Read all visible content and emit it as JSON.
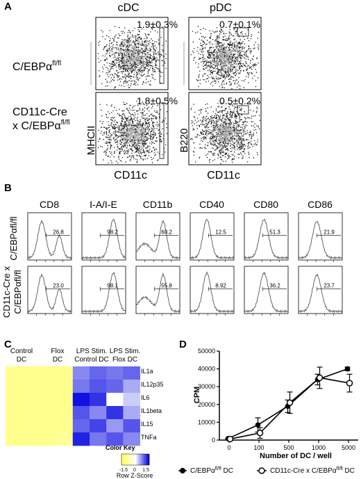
{
  "panelA": {
    "label": "A",
    "col_titles": [
      "cDC",
      "pDC"
    ],
    "row_label_1": "C/EBPα",
    "row_label_1_sup": "fl/fl",
    "row_label_2a": "CD11c-Cre",
    "row_label_2b": "x C/EBPα",
    "row_label_2b_sup": "fl/fl",
    "ylabel_cdc": "MHCII",
    "ylabel_pdc": "B220",
    "xlabel_cdc": "CD11c",
    "xlabel_pdc": "CD11c",
    "gates": [
      {
        "name": "cdc-flox-gate",
        "value": "1.9±0.3%"
      },
      {
        "name": "pdc-flox-gate",
        "value": "0.7±0.1%"
      },
      {
        "name": "cdc-cre-gate",
        "value": "1.8±0.5%"
      },
      {
        "name": "pdc-cre-gate",
        "value": "0.5±0.2%"
      }
    ]
  },
  "panelB": {
    "label": "B",
    "markers": [
      "CD8",
      "I-A/I-E",
      "CD11b",
      "CD40",
      "CD80",
      "CD86"
    ],
    "row1_label": "C/EBPαfl/fl",
    "row2_label_a": "CD11c-Cre x",
    "row2_label_b": "C/EBPαfl/fl",
    "row1_values": [
      "26.8",
      "98.2",
      "60.2",
      "12.5",
      "51.3",
      "21.9"
    ],
    "row2_values": [
      "23.0",
      "98.1",
      "55.8",
      "8.92",
      "36.2",
      "23.7"
    ]
  },
  "panelC": {
    "label": "C",
    "col_groups": [
      {
        "line1": "Control",
        "line2": "DC"
      },
      {
        "line1": "Flox",
        "line2": "DC"
      },
      {
        "line1": "LPS Stim.",
        "line2": "Control DC"
      },
      {
        "line1": "LPS Stim.",
        "line2": "Flox DC"
      }
    ],
    "genes": [
      "IL1a",
      "IL12p35",
      "IL6",
      "IL1beta",
      "IL15",
      "TNFa"
    ],
    "color_key_title": "Color Key",
    "color_key_ticks": [
      "-1.5",
      "0",
      "1.5"
    ],
    "color_key_label": "Row Z-Score",
    "colors": {
      "low": "#ffff55",
      "mid": "#ffffff",
      "high": "#0000e0"
    },
    "matrix": [
      [
        -1.0,
        -1.0,
        -1.0,
        -1.0,
        0.7,
        0.9,
        0.8,
        0.9
      ],
      [
        -1.0,
        -1.0,
        -1.0,
        -1.0,
        0.8,
        1.0,
        0.9,
        0.5
      ],
      [
        -1.0,
        -1.0,
        -1.0,
        -1.0,
        1.4,
        1.2,
        0.0,
        0.3
      ],
      [
        -1.0,
        -1.0,
        -1.0,
        -1.0,
        1.0,
        0.7,
        1.2,
        0.5
      ],
      [
        -1.0,
        -1.0,
        -1.0,
        -1.0,
        0.9,
        1.1,
        0.6,
        1.0
      ],
      [
        -1.0,
        -1.0,
        -1.0,
        -0.9,
        1.3,
        0.8,
        1.0,
        0.7
      ]
    ]
  },
  "panelD": {
    "label": "D",
    "chart_data": {
      "type": "line",
      "categories": [
        "0",
        "100",
        "500",
        "1000",
        "5000"
      ],
      "ylabel": "CPM",
      "xlabel": "Number of DC / well",
      "ylim": [
        0,
        50000
      ],
      "yticks": [
        "0",
        "10000",
        "20000",
        "30000",
        "40000",
        "50000"
      ],
      "series": [
        {
          "name": "C/EBPαfl/fl DC",
          "legend_main": "C/EBPα",
          "legend_sup": "fl/fl",
          "legend_tail": " DC",
          "marker": "filled",
          "values": [
            800,
            8500,
            19000,
            34000,
            40000
          ],
          "errors": [
            300,
            4000,
            3500,
            3000,
            1000
          ]
        },
        {
          "name": "CD11c-Cre x C/EBPαfl/fl DC",
          "legend_main": "CD11c-Cre x C/EBPα",
          "legend_sup": "fl/fl",
          "legend_tail": " DC",
          "marker": "open",
          "values": [
            600,
            4000,
            21000,
            35000,
            32000
          ],
          "errors": [
            300,
            3000,
            6000,
            6000,
            5000
          ]
        }
      ]
    }
  }
}
